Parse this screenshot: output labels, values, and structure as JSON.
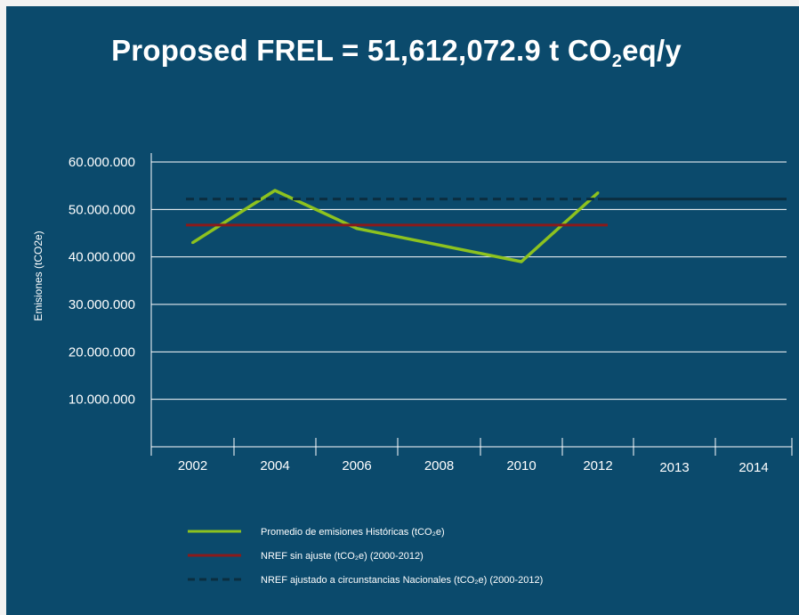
{
  "title": {
    "prefix": "Proposed FREL = 51,612,072.9 t CO",
    "sub": "2",
    "suffix": "eq/y"
  },
  "colors": {
    "background": "#0b4a6c",
    "historical": "#8dc21f",
    "nref_sin_ajuste": "#8b1a1a",
    "nref_ajustado": "#0b2e40",
    "grid": "#ffffff"
  },
  "chart_data": {
    "type": "line",
    "categories": [
      "2002",
      "2004",
      "2006",
      "2008",
      "2010",
      "2012",
      "2013",
      "2014"
    ],
    "ylabel": "Emisiones (tCO2e)",
    "yticks": [
      "10.000.000",
      "20.000.000",
      "30.000.000",
      "40.000.000",
      "50.000.000",
      "60.000.000"
    ],
    "ylim": [
      0,
      60000000
    ],
    "grid": true,
    "legend_position": "bottom",
    "series": [
      {
        "name": "Promedio de emisiones Históricas (tCO₂e)",
        "style": "solid",
        "color": "#8dc21f",
        "x": [
          "2002",
          "2004",
          "2006",
          "2008",
          "2010",
          "2012"
        ],
        "values": [
          43000000,
          54000000,
          46000000,
          42500000,
          39000000,
          53500000
        ]
      },
      {
        "name": "NREF sin ajuste (tCO₂e) (2000-2012)",
        "style": "solid",
        "color": "#8b1a1a",
        "x": [
          "2002",
          "2012"
        ],
        "values": [
          46700000,
          46700000
        ]
      },
      {
        "name": "NREF ajustado a circunstancias Nacionales (tCO₂e) (2000-2012)",
        "style": "dashed-then-solid",
        "color": "#0b2e40",
        "x": [
          "2002",
          "2012",
          "2014"
        ],
        "values": [
          52200000,
          52200000,
          52200000
        ]
      }
    ]
  }
}
